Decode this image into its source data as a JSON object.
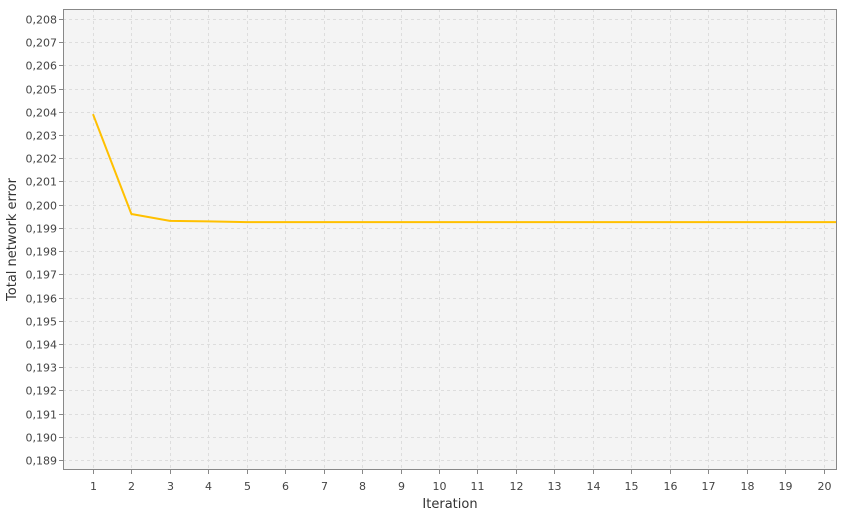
{
  "chart_data": {
    "type": "line",
    "title": "",
    "xlabel": "Iteration",
    "ylabel": "Total network error",
    "x": [
      1,
      2,
      3,
      4,
      5,
      6,
      7,
      8,
      9,
      10,
      11,
      12,
      13,
      14,
      15,
      16,
      17,
      18,
      19,
      20
    ],
    "x_tick_labels": [
      "1",
      "2",
      "3",
      "4",
      "5",
      "6",
      "7",
      "8",
      "9",
      "10",
      "11",
      "12",
      "13",
      "14",
      "15",
      "16",
      "17",
      "18",
      "19",
      "20"
    ],
    "series": [
      {
        "values": [
          0.2039,
          0.1996,
          0.1993,
          0.19928,
          0.19925,
          0.19925,
          0.19925,
          0.19925,
          0.19925,
          0.19925,
          0.19925,
          0.19925,
          0.19925,
          0.19925,
          0.19925,
          0.19925,
          0.19925,
          0.19925,
          0.19925,
          0.19925
        ],
        "color": "#ffc000"
      }
    ],
    "y_ticks": [
      0.189,
      0.19,
      0.191,
      0.192,
      0.193,
      0.194,
      0.195,
      0.196,
      0.197,
      0.198,
      0.199,
      0.2,
      0.201,
      0.202,
      0.203,
      0.204,
      0.205,
      0.206,
      0.207,
      0.208
    ],
    "y_tick_labels": [
      "0,189",
      "0,190",
      "0,191",
      "0,192",
      "0,193",
      "0,194",
      "0,195",
      "0,196",
      "0,197",
      "0,198",
      "0,199",
      "0,200",
      "0,201",
      "0,202",
      "0,203",
      "0,204",
      "0,205",
      "0,206",
      "0,207",
      "0,208"
    ],
    "xlim": [
      0.22,
      20.35
    ],
    "ylim": [
      0.18857,
      0.20843
    ],
    "grid": true,
    "legend": "none",
    "colors": {
      "plot_background": "#f4f4f4",
      "grid": "#dddddd",
      "frame": "#888888",
      "line": "#ffc000"
    }
  }
}
